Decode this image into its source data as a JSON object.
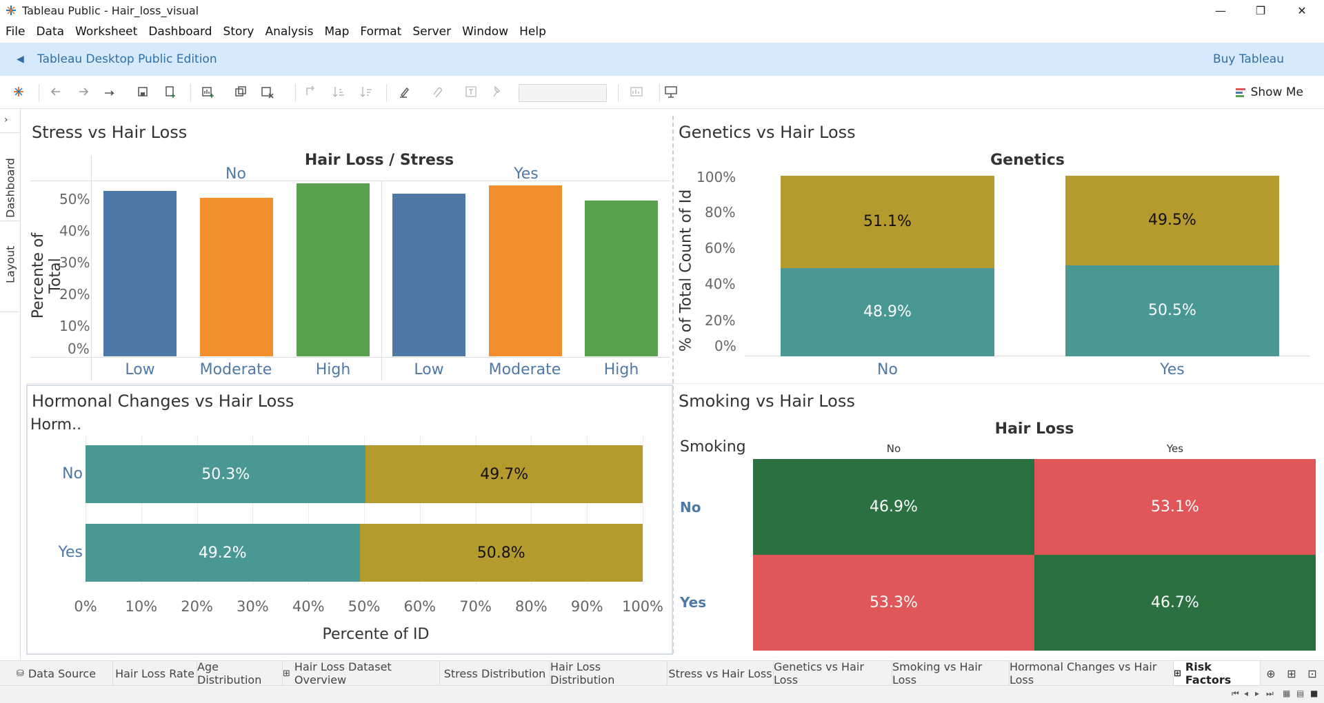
{
  "window": {
    "title": "Tableau Public - Hair_loss_visual",
    "minimize": "—",
    "restore": "❐",
    "close": "✕"
  },
  "menu": [
    "File",
    "Data",
    "Worksheet",
    "Dashboard",
    "Story",
    "Analysis",
    "Map",
    "Format",
    "Server",
    "Window",
    "Help"
  ],
  "banner": {
    "edition": "Tableau Desktop Public Edition",
    "buy": "Buy Tableau"
  },
  "toolbar": {
    "show_me": "Show Me"
  },
  "leftrail": {
    "dashboard": "Dashboard",
    "layout": "Layout"
  },
  "colors": {
    "blue": "#4e79a7",
    "orange": "#f28e2b",
    "green": "#59a14f",
    "teal": "#499894",
    "olive": "#b59a2d",
    "dark_green": "#2a7041",
    "red": "#e15759"
  },
  "stress_chart": {
    "title": "Stress vs Hair Loss",
    "header": "Hair Loss  /  Stress",
    "y_label": "Percente of Total",
    "y_ticks": [
      "50%",
      "40%",
      "30%",
      "20%",
      "10%",
      "0%"
    ],
    "chart_data": {
      "type": "bar",
      "title": "Stress vs Hair Loss",
      "ylabel": "Percente of Total",
      "ylim": [
        0,
        55
      ],
      "groups": [
        {
          "name": "No",
          "categories": [
            "Low",
            "Moderate",
            "High"
          ],
          "values": [
            50.3,
            48.2,
            52.7
          ]
        },
        {
          "name": "Yes",
          "categories": [
            "Low",
            "Moderate",
            "High"
          ],
          "values": [
            49.6,
            52.0,
            47.4
          ]
        }
      ]
    }
  },
  "genetics_chart": {
    "title": "Genetics vs Hair Loss",
    "header": "Genetics",
    "y_label": "% of Total Count of Id",
    "y_ticks": [
      "100%",
      "80%",
      "60%",
      "40%",
      "20%",
      "0%"
    ],
    "chart_data": {
      "type": "bar",
      "stacked": true,
      "title": "Genetics vs Hair Loss",
      "ylabel": "% of Total Count of Id",
      "categories": [
        "No",
        "Yes"
      ],
      "series": [
        {
          "values": [
            48.9,
            50.5
          ],
          "labels": [
            "48.9%",
            "50.5%"
          ]
        },
        {
          "values": [
            51.1,
            49.5
          ],
          "labels": [
            "51.1%",
            "49.5%"
          ]
        }
      ],
      "ylim": [
        0,
        100
      ]
    }
  },
  "hormonal_chart": {
    "title": "Hormonal Changes vs Hair Loss",
    "row_header": "Horm..",
    "x_label": "Percente of ID",
    "x_ticks": [
      "0%",
      "10%",
      "20%",
      "30%",
      "40%",
      "50%",
      "60%",
      "70%",
      "80%",
      "90%",
      "100%"
    ],
    "chart_data": {
      "type": "bar",
      "orientation": "horizontal",
      "stacked": true,
      "title": "Hormonal Changes vs Hair Loss",
      "xlabel": "Percente of ID",
      "categories": [
        "No",
        "Yes"
      ],
      "series": [
        {
          "values": [
            50.3,
            49.2
          ],
          "labels": [
            "50.3%",
            "49.2%"
          ]
        },
        {
          "values": [
            49.7,
            50.8
          ],
          "labels": [
            "49.7%",
            "50.8%"
          ]
        }
      ],
      "xlim": [
        0,
        100
      ]
    }
  },
  "smoking_chart": {
    "title": "Smoking vs Hair Loss",
    "col_header": "Hair Loss",
    "row_header": "Smoking",
    "chart_data": {
      "type": "heatmap",
      "title": "Smoking vs Hair Loss",
      "x_categories": [
        "No",
        "Yes"
      ],
      "y_categories": [
        "No",
        "Yes"
      ],
      "values": [
        [
          46.9,
          53.1
        ],
        [
          53.3,
          46.7
        ]
      ],
      "labels": [
        [
          "46.9%",
          "53.1%"
        ],
        [
          "53.3%",
          "46.7%"
        ]
      ]
    }
  },
  "tabs": [
    "Data Source",
    "Hair Loss Rate",
    "Age Distribution",
    "Hair Loss Dataset Overview",
    "Stress Distribution",
    "Hair Loss Distribution",
    "Stress vs Hair Loss",
    "Genetics vs Hair Loss",
    "Smoking vs Hair Loss",
    "Hormonal Changes vs Hair Loss",
    "Risk Factors"
  ]
}
